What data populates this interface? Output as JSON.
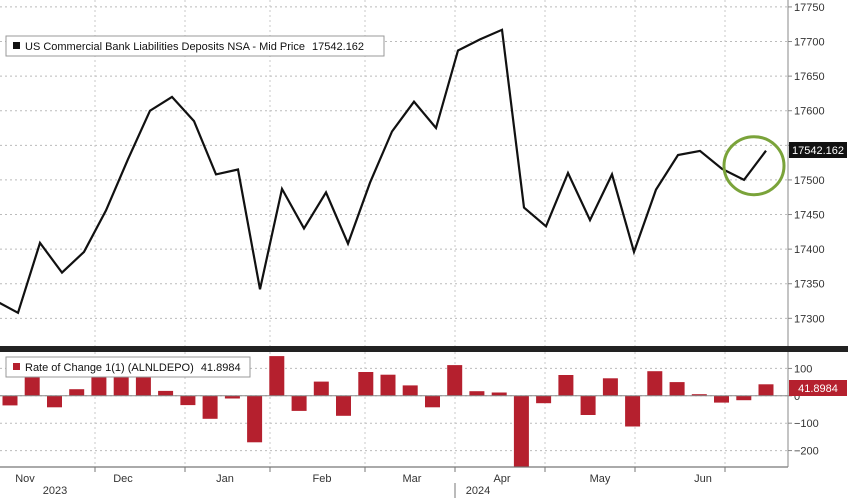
{
  "chart_data": [
    {
      "type": "line",
      "legend": {
        "label": "US Commercial Bank Liabilities Deposits NSA - Mid Price",
        "value": "17542.162"
      },
      "last_value_label": "17542.162",
      "ylim": [
        17260,
        17760
      ],
      "yticks": [
        17300,
        17350,
        17400,
        17450,
        17500,
        17550,
        17600,
        17650,
        17700,
        17750
      ],
      "grid": true,
      "colors": {
        "line": "#111111",
        "highlight": "#7aa33a"
      },
      "values": [
        17325,
        17308,
        17409,
        17366,
        17396,
        17456,
        17530,
        17600,
        17620,
        17585,
        17508,
        17515,
        17342,
        17487,
        17430,
        17482,
        17408,
        17496,
        17570,
        17613,
        17575,
        17687,
        17703,
        17717,
        17460,
        17433,
        17510,
        17442,
        17508,
        17396,
        17486,
        17536,
        17542,
        17516,
        17500,
        17542.162
      ]
    },
    {
      "type": "bar",
      "legend": {
        "label": "Rate of Change 1(1) (ALNLDEPO)",
        "value": "41.8984"
      },
      "last_value_label": "41.8984",
      "ylim": [
        -260,
        160
      ],
      "yticks": [
        -200,
        -100,
        0,
        100
      ],
      "grid": true,
      "colors": {
        "positive": "#b5202e",
        "negative": "#b5202e"
      },
      "values": [
        -35,
        70,
        -42,
        24,
        76,
        73,
        72,
        18,
        -34,
        -84,
        -10,
        -170,
        145,
        -55,
        52,
        -73,
        87,
        77,
        38,
        -42,
        112,
        17,
        12,
        -258,
        -27,
        76,
        -70,
        64,
        -112,
        90,
        50,
        6,
        -25,
        -16,
        42
      ]
    }
  ],
  "x_axis": {
    "months": [
      "Nov",
      "Dec",
      "Jan",
      "Feb",
      "Mar",
      "Apr",
      "May",
      "Jun"
    ],
    "years": [
      "2023",
      "2024"
    ]
  }
}
